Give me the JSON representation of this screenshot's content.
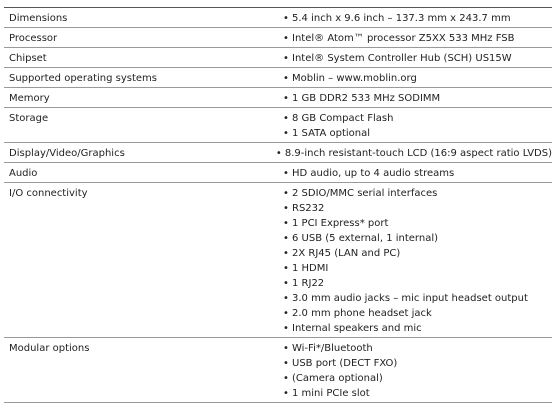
{
  "table": {
    "rows": [
      {
        "label": "Dimensions",
        "items": [
          "5.4 inch x 9.6 inch – 137.3 mm x 243.7 mm"
        ]
      },
      {
        "label": "Processor",
        "items": [
          "Intel® Atom™ processor Z5XX 533 MHz FSB"
        ]
      },
      {
        "label": "Chipset",
        "items": [
          "Intel® System Controller Hub (SCH) US15W"
        ]
      },
      {
        "label": "Supported operating systems",
        "items": [
          "Moblin – www.moblin.org"
        ]
      },
      {
        "label": "Memory",
        "items": [
          "1 GB DDR2 533 MHz SODIMM"
        ]
      },
      {
        "label": "Storage",
        "items": [
          "8 GB Compact Flash",
          "1 SATA optional"
        ]
      },
      {
        "label": "Display/Video/Graphics",
        "items": [
          "8.9-inch resistant-touch LCD (16:9 aspect ratio LVDS)"
        ]
      },
      {
        "label": "Audio",
        "items": [
          "HD audio, up to 4 audio streams"
        ]
      },
      {
        "label": "I/O connectivity",
        "items": [
          "2 SDIO/MMC serial interfaces",
          "RS232",
          "1 PCI Express* port",
          "6 USB (5 external, 1 internal)",
          "2X RJ45 (LAN and PC)",
          "1 HDMI",
          "1 RJ22",
          "3.0 mm audio jacks – mic input headset output",
          "2.0 mm phone headset jack",
          "Internal speakers and mic"
        ]
      },
      {
        "label": "Modular options",
        "items": [
          "Wi-Fi*/Bluetooth",
          "USB port (DECT FXO)",
          "(Camera optional)",
          "1 mini PCIe slot"
        ]
      }
    ]
  }
}
